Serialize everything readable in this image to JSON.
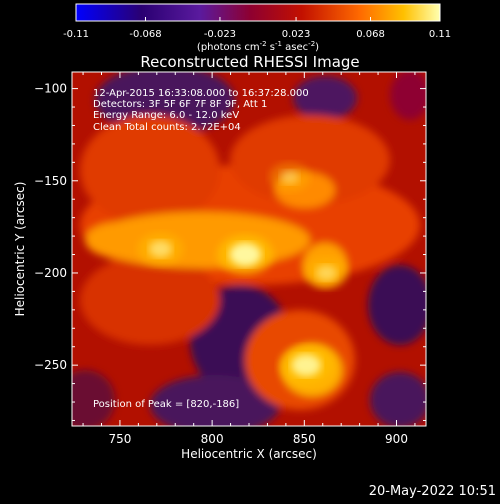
{
  "colorbar": {
    "ticks": [
      "-0.11",
      "-0.068",
      "-0.023",
      "0.023",
      "0.068",
      "0.11"
    ],
    "tick_values": [
      -0.11,
      -0.068,
      -0.023,
      0.023,
      0.068,
      0.11
    ],
    "range": [
      -0.11,
      0.11
    ],
    "units_pre": "(photons cm",
    "units_exp1": "-2",
    "units_mid1": " s",
    "units_exp2": "-1",
    "units_mid2": " asec",
    "units_exp3": "-2",
    "units_post": ")"
  },
  "chart_data": {
    "type": "heatmap",
    "title": "Reconstructed RHESSI Image",
    "xlabel": "Heliocentric X (arcsec)",
    "ylabel": "Heliocentric Y (arcsec)",
    "xlim": [
      724,
      916
    ],
    "ylim": [
      -283,
      -91
    ],
    "x_ticks": [
      750,
      800,
      850,
      900
    ],
    "y_ticks": [
      -100,
      -150,
      -200,
      -250
    ],
    "x_tick_labels": [
      "750",
      "800",
      "850",
      "900"
    ],
    "y_tick_labels": [
      "−100",
      "−150",
      "−200",
      "−250"
    ],
    "colorscale": [
      "#0000ff",
      "#2a0072",
      "#5a1a9e",
      "#8e0030",
      "#c21000",
      "#ff6a00",
      "#ffc000",
      "#ffffb0"
    ],
    "annotations": [
      "12-Apr-2015 16:33:08.000 to 16:37:28.000",
      "Detectors: 3F 5F 6F 7F 8F 9F, Att 1",
      "Energy Range: 6.0 - 12.0 keV",
      "Clean    Total counts: 2.72E+04"
    ],
    "peak_label": "Position of Peak = [820,-186]",
    "peak": [
      820,
      -186
    ],
    "sources": [
      {
        "x": 818,
        "y": -190,
        "value": 0.11
      },
      {
        "x": 851,
        "y": -250,
        "value": 0.1
      },
      {
        "x": 772,
        "y": -187,
        "value": 0.07
      },
      {
        "x": 842,
        "y": -148,
        "value": 0.05
      },
      {
        "x": 862,
        "y": -200,
        "value": 0.06
      }
    ]
  },
  "footer": {
    "timestamp": "20-May-2022 10:51"
  }
}
